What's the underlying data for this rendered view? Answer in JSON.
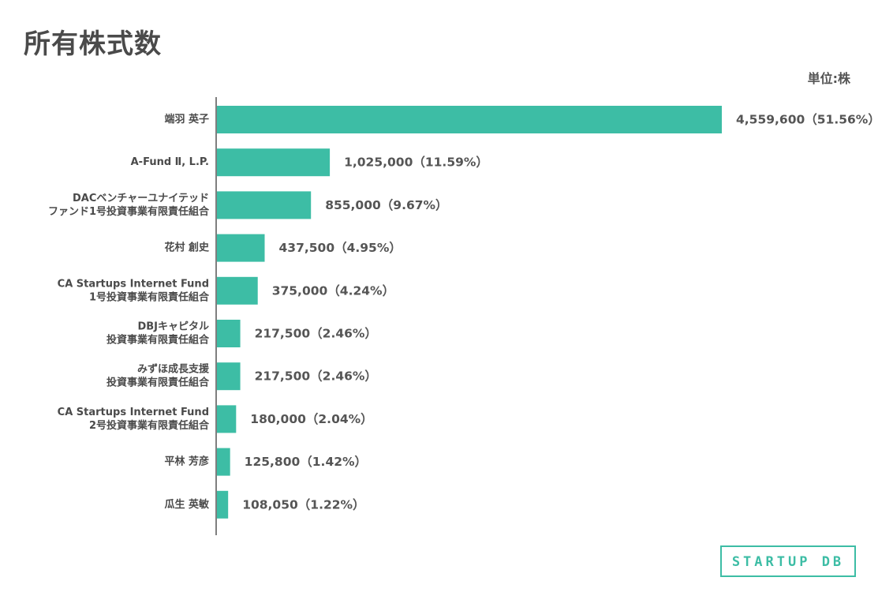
{
  "header": {
    "title": "所有株式数",
    "unit": "単位:株"
  },
  "chart_data": {
    "type": "bar",
    "orientation": "horizontal",
    "title": "所有株式数",
    "unit": "単位:株",
    "bar_color": "#3dbda5",
    "categories": [
      [
        "端羽 英子"
      ],
      [
        "A-Fund Ⅱ, L.P."
      ],
      [
        "DACベンチャーユナイテッド",
        "ファンド1号投資事業有限責任組合"
      ],
      [
        "花村 創史"
      ],
      [
        "CA Startups Internet Fund",
        "1号投資事業有限責任組合"
      ],
      [
        "DBJキャピタル",
        "投資事業有限責任組合"
      ],
      [
        "みずほ成長支援",
        "投資事業有限責任組合"
      ],
      [
        "CA Startups Internet Fund",
        "2号投資事業有限責任組合"
      ],
      [
        "平林 芳彦"
      ],
      [
        "瓜生 英敏"
      ]
    ],
    "values": [
      4559600,
      1025000,
      855000,
      437500,
      375000,
      217500,
      217500,
      180000,
      125800,
      108050
    ],
    "value_labels": [
      "4,559,600（51.56%）",
      "1,025,000（11.59%）",
      "855,000（9.67%）",
      "437,500（4.95%）",
      "375,000（4.24%）",
      "217,500（2.46%）",
      "217,500（2.46%）",
      "180,000（2.04%）",
      "125,800（1.42%）",
      "108,050（1.22%）"
    ],
    "xlim": [
      0,
      4559600
    ]
  },
  "logo": {
    "text": "STARTUP DB",
    "color": "#3dbda5"
  }
}
